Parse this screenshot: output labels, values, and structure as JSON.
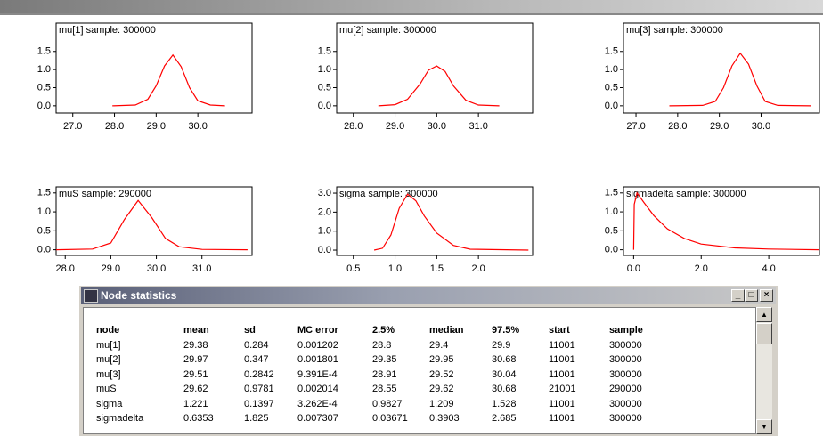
{
  "chart_data": [
    {
      "type": "line",
      "title": "mu[1] sample: 300000",
      "color": "#ff0000",
      "x": [
        27.95,
        28.5,
        28.8,
        29.0,
        29.2,
        29.4,
        29.6,
        29.8,
        30.0,
        30.3,
        30.65
      ],
      "values": [
        0,
        0.02,
        0.18,
        0.55,
        1.1,
        1.4,
        1.08,
        0.5,
        0.14,
        0.02,
        0
      ],
      "xlim": [
        26.6,
        31.3
      ],
      "ylim": [
        -0.2,
        2.28
      ],
      "xticks": [
        {
          "value": 27,
          "label": "27.0"
        },
        {
          "value": 28,
          "label": "28.0"
        },
        {
          "value": 29,
          "label": "29.0"
        },
        {
          "value": 30,
          "label": "30.0"
        }
      ],
      "yticks": [
        {
          "value": 0,
          "label": "0.0"
        },
        0.5,
        {
          "value": 1,
          "label": "1.0"
        },
        1.5
      ]
    },
    {
      "type": "line",
      "title": "mu[2] sample: 300000",
      "color": "#ff0000",
      "x": [
        28.6,
        29.0,
        29.3,
        29.6,
        29.8,
        30.0,
        30.2,
        30.4,
        30.7,
        31.0,
        31.5
      ],
      "values": [
        0,
        0.03,
        0.18,
        0.6,
        0.98,
        1.1,
        0.95,
        0.55,
        0.15,
        0.02,
        0
      ],
      "xlim": [
        27.6,
        32.3
      ],
      "ylim": [
        -0.2,
        2.28
      ],
      "xticks": [
        {
          "value": 28,
          "label": "28.0"
        },
        {
          "value": 29,
          "label": "29.0"
        },
        {
          "value": 30,
          "label": "30.0"
        },
        {
          "value": 31,
          "label": "31.0"
        }
      ],
      "yticks": [
        {
          "value": 0,
          "label": "0.0"
        },
        0.5,
        {
          "value": 1,
          "label": "1.0"
        },
        1.5
      ]
    },
    {
      "type": "line",
      "title": "mu[3] sample: 300000",
      "color": "#ff0000",
      "x": [
        27.8,
        28.6,
        28.9,
        29.1,
        29.3,
        29.5,
        29.7,
        29.9,
        30.1,
        30.4,
        31.2
      ],
      "values": [
        0,
        0.01,
        0.12,
        0.5,
        1.1,
        1.45,
        1.15,
        0.55,
        0.12,
        0.01,
        0
      ],
      "xlim": [
        26.7,
        31.4
      ],
      "ylim": [
        -0.2,
        2.28
      ],
      "xticks": [
        {
          "value": 27,
          "label": "27.0"
        },
        {
          "value": 28,
          "label": "28.0"
        },
        {
          "value": 29,
          "label": "29.0"
        },
        {
          "value": 30,
          "label": "30.0"
        }
      ],
      "yticks": [
        {
          "value": 0,
          "label": "0.0"
        },
        0.5,
        {
          "value": 1,
          "label": "1.0"
        },
        1.5
      ]
    },
    {
      "type": "line",
      "title": "muS sample: 290000",
      "color": "#ff0000",
      "x": [
        27.8,
        28.6,
        29.0,
        29.3,
        29.6,
        29.9,
        30.2,
        30.5,
        31.0,
        32.0
      ],
      "values": [
        0,
        0.02,
        0.18,
        0.8,
        1.3,
        0.85,
        0.3,
        0.08,
        0.01,
        0
      ],
      "xlim": [
        27.8,
        32.1
      ],
      "ylim": [
        -0.15,
        1.66
      ],
      "xticks": [
        {
          "value": 28,
          "label": "28.0"
        },
        {
          "value": 29,
          "label": "29.0"
        },
        {
          "value": 30,
          "label": "30.0"
        },
        {
          "value": 31,
          "label": "31.0"
        }
      ],
      "yticks": [
        {
          "value": 0,
          "label": "0.0"
        },
        0.5,
        {
          "value": 1,
          "label": "1.0"
        },
        1.5
      ]
    },
    {
      "type": "line",
      "title": "sigma sample: 300000",
      "color": "#ff0000",
      "x": [
        0.75,
        0.85,
        0.95,
        1.05,
        1.15,
        1.25,
        1.35,
        1.5,
        1.7,
        1.9,
        2.6
      ],
      "values": [
        0,
        0.1,
        0.8,
        2.2,
        2.95,
        2.6,
        1.8,
        0.9,
        0.25,
        0.05,
        0
      ],
      "xlim": [
        0.3,
        2.65
      ],
      "ylim": [
        -0.28,
        3.33
      ],
      "xticks": [
        0.5,
        {
          "value": 1,
          "label": "1.0"
        },
        1.5,
        {
          "value": 2,
          "label": "2.0"
        }
      ],
      "yticks": [
        {
          "value": 0,
          "label": "0.0"
        },
        {
          "value": 1,
          "label": "1.0"
        },
        {
          "value": 2,
          "label": "2.0"
        },
        {
          "value": 3,
          "label": "3.0"
        }
      ]
    },
    {
      "type": "line",
      "title": "sigmadelta sample: 300000",
      "color": "#ff0000",
      "x": [
        0.0,
        0.02,
        0.1,
        0.3,
        0.6,
        1.0,
        1.5,
        2.0,
        3.0,
        4.0,
        5.5
      ],
      "values": [
        0,
        1.2,
        1.5,
        1.25,
        0.9,
        0.55,
        0.3,
        0.15,
        0.05,
        0.02,
        0
      ],
      "xlim": [
        -0.3,
        5.5
      ],
      "ylim": [
        -0.15,
        1.66
      ],
      "xticks": [
        {
          "value": 0,
          "label": "0.0"
        },
        {
          "value": 2,
          "label": "2.0"
        },
        {
          "value": 4,
          "label": "4.0"
        }
      ],
      "yticks": [
        {
          "value": 0,
          "label": "0.0"
        },
        0.5,
        {
          "value": 1,
          "label": "1.0"
        },
        1.5
      ]
    }
  ],
  "node_statistics": {
    "title": "Node statistics",
    "columns": [
      "node",
      "mean",
      "sd",
      "MC error",
      "2.5%",
      "median",
      "97.5%",
      "start",
      "sample"
    ],
    "rows": [
      [
        "mu[1]",
        "29.38",
        "0.284",
        "0.001202",
        "28.8",
        "29.4",
        "29.9",
        "11001",
        "300000"
      ],
      [
        "mu[2]",
        "29.97",
        "0.347",
        "0.001801",
        "29.35",
        "29.95",
        "30.68",
        "11001",
        "300000"
      ],
      [
        "mu[3]",
        "29.51",
        "0.2842",
        "9.391E-4",
        "28.91",
        "29.52",
        "30.04",
        "11001",
        "300000"
      ],
      [
        "muS",
        "29.62",
        "0.9781",
        "0.002014",
        "28.55",
        "29.62",
        "30.68",
        "21001",
        "290000"
      ],
      [
        "sigma",
        "1.221",
        "0.1397",
        "3.262E-4",
        "0.9827",
        "1.209",
        "1.528",
        "11001",
        "300000"
      ],
      [
        "sigmadelta",
        "0.6353",
        "1.825",
        "0.007307",
        "0.03671",
        "0.3903",
        "2.685",
        "11001",
        "300000"
      ]
    ]
  }
}
